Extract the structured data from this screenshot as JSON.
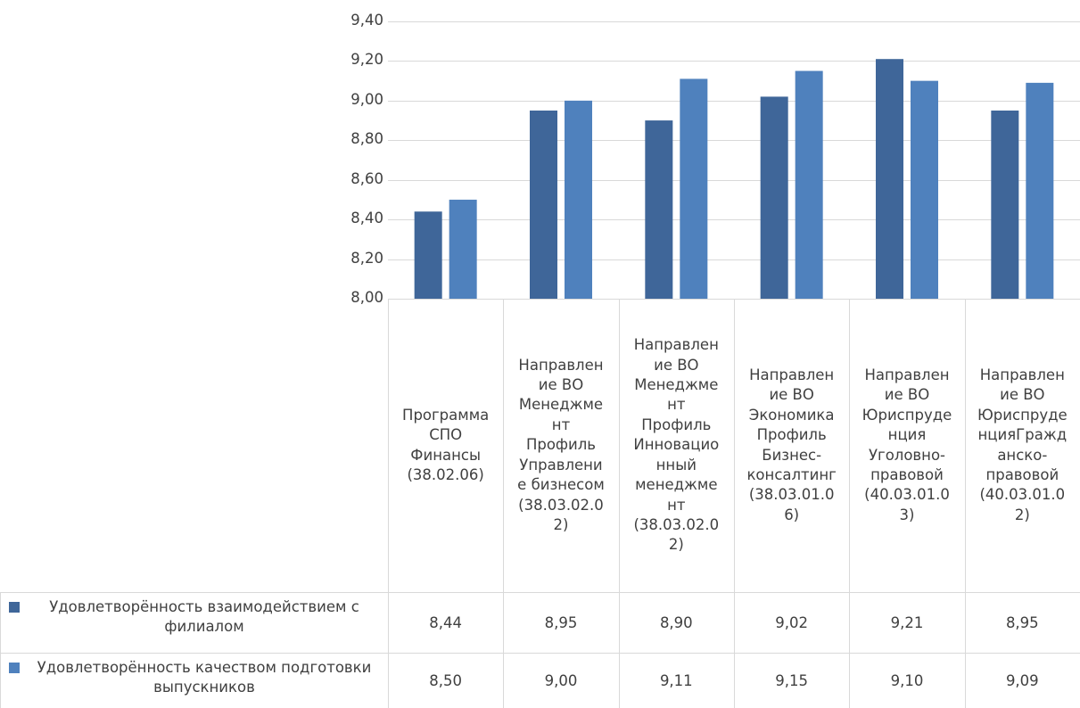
{
  "chart_data": {
    "type": "bar",
    "categories": [
      "Программа\nСПО\nФинансы\n(38.02.06)",
      "Направлен\nие ВО\nМенеджме\nнт\nПрофиль\nУправлени\nе бизнесом\n(38.03.02.0\n2)",
      "Направлен\nие ВО\nМенеджме\nнт\nПрофиль\nИнновацио\nнный\nменеджме\nнт\n(38.03.02.0\n2)",
      "Направлен\nие ВО\nЭкономика\nПрофиль\nБизнес-\nконсалтинг\n(38.03.01.0\n6)",
      "Направлен\nие ВО\nЮриспруде\nнция\nУголовно-\nправовой\n(40.03.01.0\n3)",
      "Направлен\nие ВО\nЮриспруде\nнцияГражд\nанско-\nправовой\n(40.03.01.0\n2)"
    ],
    "series": [
      {
        "name": "Удовлетворённость взаимодействием с филиалом",
        "color": "#3f6699",
        "values": [
          8.44,
          8.95,
          8.9,
          9.02,
          9.21,
          8.95
        ],
        "labels": [
          "8,44",
          "8,95",
          "8,90",
          "9,02",
          "9,21",
          "8,95"
        ]
      },
      {
        "name": "Удовлетворённость качеством подготовки выпускников",
        "color": "#4f81bd",
        "values": [
          8.5,
          9.0,
          9.11,
          9.15,
          9.1,
          9.09
        ],
        "labels": [
          "8,50",
          "9,00",
          "9,11",
          "9,15",
          "9,10",
          "9,09"
        ]
      }
    ],
    "ylim": [
      8.0,
      9.4
    ],
    "yticks": [
      8.0,
      8.2,
      8.4,
      8.6,
      8.8,
      9.0,
      9.2,
      9.4
    ],
    "ytick_labels": [
      "8,00",
      "8,20",
      "8,40",
      "8,60",
      "8,80",
      "9,00",
      "9,20",
      "9,40"
    ],
    "grid": true,
    "legend": "data-table",
    "colors": {
      "grid": "#d9d9d9",
      "text": "#404040"
    }
  }
}
